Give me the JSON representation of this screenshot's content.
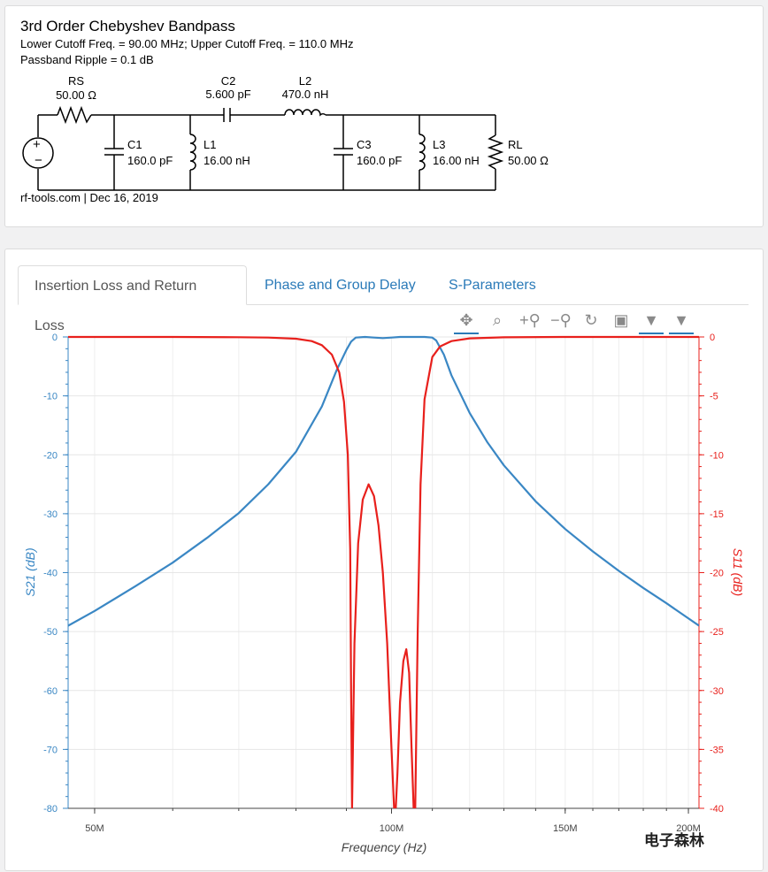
{
  "schematic": {
    "title": "3rd Order Chebyshev Bandpass",
    "cutoff_line": "Lower Cutoff Freq. = 90.00 MHz; Upper Cutoff Freq. = 110.0 MHz",
    "ripple_line": "Passband Ripple = 0.1 dB",
    "footer": "rf-tools.com | Dec 16, 2019",
    "components": {
      "rs_name": "RS",
      "rs_value": "50.00 Ω",
      "c1_name": "C1",
      "c1_value": "160.0 pF",
      "l1_name": "L1",
      "l1_value": "16.00 nH",
      "c2_name": "C2",
      "c2_value": "5.600 pF",
      "l2_name": "L2",
      "l2_value": "470.0 nH",
      "c3_name": "C3",
      "c3_value": "160.0 pF",
      "l3_name": "L3",
      "l3_value": "16.00 nH",
      "rl_name": "RL",
      "rl_value": "50.00 Ω"
    }
  },
  "tabs": [
    {
      "label": "Insertion Loss and Return Loss",
      "active": true
    },
    {
      "label": "Phase and Group Delay",
      "active": false
    },
    {
      "label": "S-Parameters",
      "active": false
    }
  ],
  "toolbar": [
    "pan-icon",
    "box-zoom-icon",
    "zoom-in-icon",
    "zoom-out-icon",
    "reset-icon",
    "save-icon",
    "hover-icon",
    "hover-icon-2"
  ],
  "colors": {
    "s21": "#3a87c4",
    "s11": "#e8201c",
    "link": "#2a7ab8"
  },
  "chart_data": {
    "type": "line",
    "xlabel": "Frequency (Hz)",
    "ylabel_left": "S21 (dB)",
    "ylabel_right": "S11 (dB)",
    "x_scale": "log",
    "xlim": [
      47000000,
      205000000
    ],
    "ylim_left": [
      -80,
      0
    ],
    "ylim_right": [
      -40,
      0
    ],
    "x_ticks": [
      {
        "value": 50000000,
        "label": "50M"
      },
      {
        "value": 100000000,
        "label": "100M"
      },
      {
        "value": 150000000,
        "label": "150M"
      },
      {
        "value": 200000000,
        "label": "200M"
      }
    ],
    "y_ticks_left": [
      0,
      -10,
      -20,
      -30,
      -40,
      -50,
      -60,
      -70,
      -80
    ],
    "y_ticks_right": [
      0,
      -5,
      -10,
      -15,
      -20,
      -25,
      -30,
      -35,
      -40
    ],
    "grid": true,
    "series": [
      {
        "name": "S21 (dB)",
        "axis": "left",
        "x": [
          47000000,
          50000000,
          55000000,
          60000000,
          65000000,
          70000000,
          75000000,
          80000000,
          85000000,
          88000000,
          90000000,
          91000000,
          92000000,
          94000000,
          96000000,
          98000000,
          100000000,
          102000000,
          104000000,
          106000000,
          108000000,
          110000000,
          111000000,
          113000000,
          115000000,
          120000000,
          125000000,
          130000000,
          140000000,
          150000000,
          160000000,
          170000000,
          180000000,
          190000000,
          205000000
        ],
        "values": [
          -49,
          -46.5,
          -42.3,
          -38.3,
          -34.1,
          -29.9,
          -25,
          -19.5,
          -11.8,
          -5.6,
          -2.2,
          -0.8,
          -0.1,
          0,
          -0.1,
          -0.2,
          -0.1,
          0,
          0,
          0,
          0,
          -0.1,
          -0.6,
          -3,
          -6.5,
          -12.9,
          -17.8,
          -21.8,
          -27.9,
          -32.6,
          -36.4,
          -39.7,
          -42.6,
          -45.2,
          -49
        ]
      },
      {
        "name": "S11 (dB)",
        "axis": "right",
        "x": [
          47000000,
          60000000,
          70000000,
          75000000,
          80000000,
          83000000,
          85000000,
          87000000,
          88500000,
          89500000,
          90300000,
          90800000,
          91000000,
          91200000,
          91700000,
          92500000,
          93500000,
          94800000,
          96000000,
          97000000,
          98000000,
          99000000,
          100000000,
          100600000,
          101000000,
          101400000,
          102000000,
          102800000,
          103500000,
          104200000,
          104800000,
          105300000,
          105700000,
          106300000,
          107000000,
          108000000,
          110000000,
          112000000,
          115000000,
          120000000,
          130000000,
          150000000,
          205000000
        ],
        "values": [
          0,
          0,
          -0.02,
          -0.05,
          -0.15,
          -0.35,
          -0.7,
          -1.5,
          -3,
          -5.5,
          -10,
          -18,
          -30,
          -40,
          -26,
          -17.5,
          -13.8,
          -12.5,
          -13.5,
          -16,
          -20,
          -26,
          -35,
          -40,
          -40,
          -37,
          -31,
          -27.5,
          -26.5,
          -28.5,
          -35,
          -40,
          -40,
          -25,
          -12.5,
          -5.3,
          -1.7,
          -0.8,
          -0.35,
          -0.12,
          -0.03,
          0,
          0
        ]
      }
    ]
  },
  "watermark": "电子森林"
}
